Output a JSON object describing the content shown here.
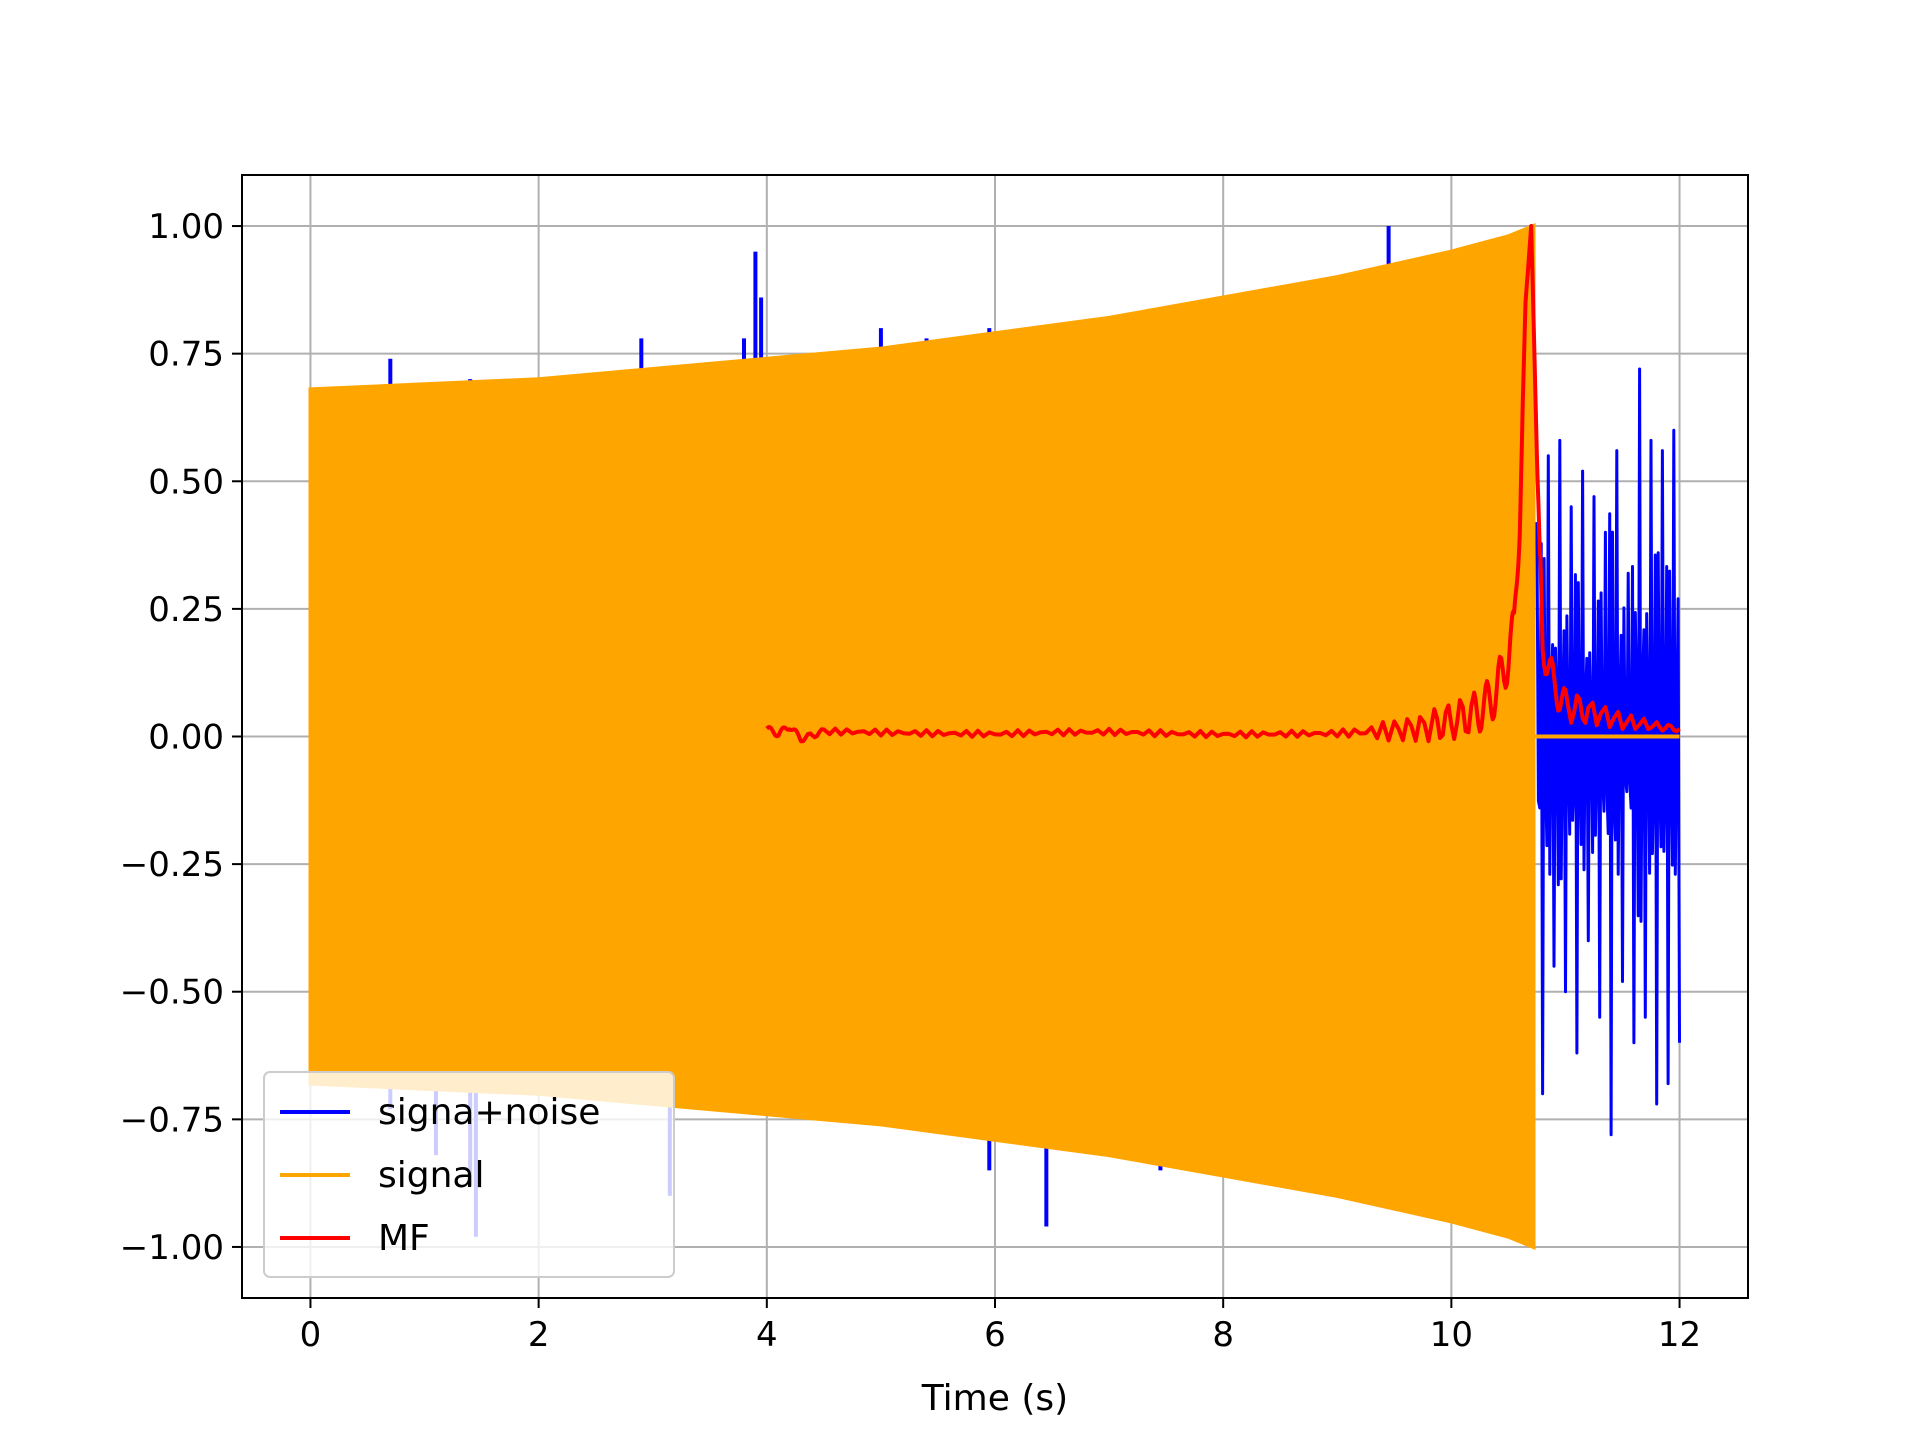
{
  "chart_data": {
    "type": "line",
    "title": "",
    "xlabel": "Time (s)",
    "ylabel": "",
    "xlim": [
      -0.6,
      12.6
    ],
    "ylim": [
      -1.1,
      1.1
    ],
    "xticks": [
      0,
      2,
      4,
      6,
      8,
      10,
      12
    ],
    "xtick_labels": [
      "0",
      "2",
      "4",
      "6",
      "8",
      "10",
      "12"
    ],
    "yticks": [
      1.0,
      0.75,
      0.5,
      0.25,
      0.0,
      -0.25,
      -0.5,
      -0.75,
      -1.0
    ],
    "ytick_labels": [
      "1.00",
      "0.75",
      "0.50",
      "0.25",
      "0.00",
      "−0.25",
      "−0.50",
      "−0.75",
      "−1.00"
    ],
    "grid": true,
    "legend_position": "lower-left",
    "series": [
      {
        "name": "signa+noise",
        "color": "#0000ff",
        "description_points": {
          "spikes_up": [
            [
              0.7,
              0.74
            ],
            [
              1.4,
              0.7
            ],
            [
              2.9,
              0.78
            ],
            [
              3.8,
              0.78
            ],
            [
              3.9,
              0.95
            ],
            [
              3.95,
              0.86
            ],
            [
              5.0,
              0.8
            ],
            [
              5.4,
              0.78
            ],
            [
              5.95,
              0.8
            ],
            [
              9.45,
              1.0
            ]
          ],
          "spikes_down": [
            [
              0.7,
              -0.73
            ],
            [
              1.1,
              -0.82
            ],
            [
              1.4,
              -0.88
            ],
            [
              1.45,
              -0.98
            ],
            [
              3.15,
              -0.9
            ],
            [
              5.95,
              -0.85
            ],
            [
              6.45,
              -0.96
            ],
            [
              7.45,
              -0.85
            ]
          ],
          "noise_x": [
            10.75,
            10.8,
            10.85,
            10.9,
            10.95,
            11.0,
            11.05,
            11.1,
            11.15,
            11.2,
            11.25,
            11.3,
            11.35,
            11.4,
            11.45,
            11.5,
            11.55,
            11.6,
            11.65,
            11.7,
            11.75,
            11.8,
            11.85,
            11.9,
            11.95,
            12.0
          ],
          "noise_y": [
            0.42,
            -0.7,
            0.55,
            -0.45,
            0.58,
            -0.5,
            0.45,
            -0.62,
            0.52,
            -0.4,
            0.47,
            -0.55,
            0.4,
            -0.78,
            0.56,
            -0.48,
            0.32,
            -0.6,
            0.72,
            -0.55,
            0.58,
            -0.72,
            0.56,
            -0.68,
            0.6,
            -0.6
          ]
        }
      },
      {
        "name": "signal",
        "color": "#ffa500",
        "envelope_x": [
          0,
          1,
          2,
          3,
          4,
          5,
          6,
          7,
          8,
          9,
          10,
          10.5,
          10.72
        ],
        "envelope_y": [
          0.68,
          0.69,
          0.7,
          0.72,
          0.74,
          0.76,
          0.79,
          0.82,
          0.86,
          0.9,
          0.95,
          0.98,
          1.0
        ],
        "end_time": 10.72
      },
      {
        "name": "MF",
        "color": "#ff0000",
        "x": [
          4.0,
          4.1,
          4.2,
          4.3,
          4.5,
          5.0,
          5.5,
          6.0,
          6.5,
          7.0,
          7.5,
          8.0,
          8.5,
          9.0,
          9.5,
          9.8,
          10.0,
          10.2,
          10.3,
          10.4,
          10.5,
          10.55,
          10.6,
          10.65,
          10.7,
          10.75,
          10.8,
          10.9,
          11.0,
          11.2,
          11.5,
          11.8,
          12.0
        ],
        "y": [
          0.015,
          0.005,
          0.02,
          -0.005,
          0.01,
          0.008,
          0.006,
          0.005,
          0.008,
          0.009,
          0.006,
          0.004,
          0.005,
          0.006,
          0.012,
          0.02,
          0.03,
          0.045,
          0.06,
          0.09,
          0.16,
          0.2,
          0.45,
          0.85,
          1.0,
          0.55,
          0.18,
          0.1,
          0.06,
          0.05,
          0.03,
          0.02,
          0.015
        ]
      }
    ]
  }
}
